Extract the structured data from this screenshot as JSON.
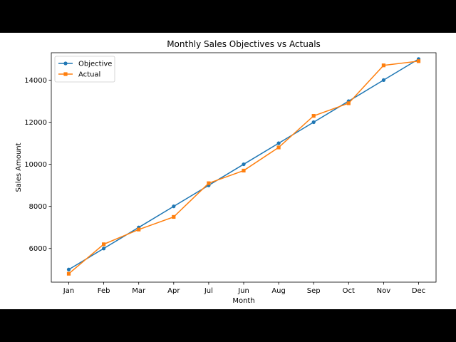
{
  "chart_data": {
    "type": "line",
    "title": "Monthly Sales Objectives vs Actuals",
    "xlabel": "Month",
    "ylabel": "Sales Amount",
    "categories": [
      "Jan",
      "Feb",
      "Mar",
      "Apr",
      "Jul",
      "Jun",
      "Aug",
      "Sep",
      "Oct",
      "Nov",
      "Dec"
    ],
    "ylim": [
      4400,
      15300
    ],
    "yticks": [
      6000,
      8000,
      10000,
      12000,
      14000
    ],
    "grid": false,
    "legend_position": "top-left",
    "series": [
      {
        "name": "Objective",
        "color": "#1f77b4",
        "marker": "circle",
        "values": [
          5000,
          6000,
          7000,
          8000,
          9000,
          10000,
          11000,
          12000,
          13000,
          14000,
          15000
        ]
      },
      {
        "name": "Actual",
        "color": "#ff7f0e",
        "marker": "square",
        "values": [
          4800,
          6200,
          6900,
          7500,
          9100,
          9700,
          10800,
          12300,
          12900,
          14700,
          14900
        ]
      }
    ]
  }
}
